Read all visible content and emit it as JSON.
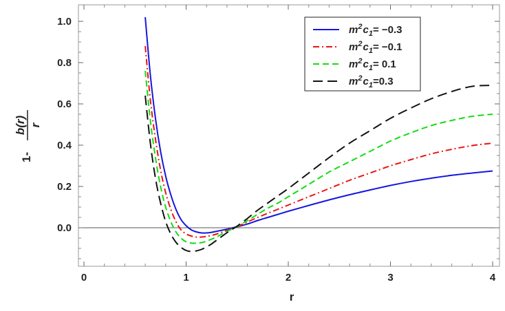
{
  "chart_data": {
    "type": "line",
    "xlabel": "r",
    "ylabel": "1 - b(r)/r",
    "ylabel_parts": {
      "lead": "1-",
      "numerator": "b(r)",
      "denominator": "r"
    },
    "xlim": [
      0,
      4
    ],
    "ylim": [
      -0.15,
      1.0
    ],
    "x_ticks": [
      "0",
      "1",
      "2",
      "3",
      "4"
    ],
    "y_ticks": [
      "0.0",
      "0.2",
      "0.4",
      "0.6",
      "0.8",
      "1.0"
    ],
    "grid": false,
    "legend_position": "top-right",
    "series": [
      {
        "name": "m2c1= -0.3",
        "legend": {
          "m": "m",
          "sup": "2",
          "c": "c",
          "sub": "1",
          "rest": "= −0.3"
        },
        "color": "#1515e0",
        "dash": "solid",
        "x": [
          0.6,
          0.65,
          0.7,
          0.75,
          0.8,
          0.85,
          0.9,
          0.95,
          1.0,
          1.05,
          1.1,
          1.15,
          1.2,
          1.25,
          1.3,
          1.35,
          1.4,
          1.45,
          1.5,
          1.6,
          1.7,
          1.8,
          1.9,
          2.0,
          2.2,
          2.4,
          2.6,
          2.8,
          3.0,
          3.2,
          3.4,
          3.6,
          3.8,
          4.0
        ],
        "y": [
          1.02,
          0.74,
          0.53,
          0.37,
          0.25,
          0.16,
          0.09,
          0.04,
          0.01,
          -0.01,
          -0.02,
          -0.025,
          -0.025,
          -0.022,
          -0.017,
          -0.012,
          -0.007,
          -0.001,
          0.005,
          0.018,
          0.035,
          0.05,
          0.065,
          0.08,
          0.108,
          0.135,
          0.16,
          0.183,
          0.205,
          0.224,
          0.24,
          0.254,
          0.265,
          0.275
        ]
      },
      {
        "name": "m2c1= -0.1",
        "legend": {
          "m": "m",
          "sup": "2",
          "c": "c",
          "sub": "1",
          "rest": "= −0.1"
        },
        "color": "#ee1111",
        "dash": "9,4,2,4",
        "x": [
          0.6,
          0.65,
          0.7,
          0.75,
          0.8,
          0.85,
          0.9,
          0.95,
          1.0,
          1.05,
          1.1,
          1.15,
          1.2,
          1.25,
          1.3,
          1.35,
          1.4,
          1.45,
          1.5,
          1.6,
          1.7,
          1.8,
          1.9,
          2.0,
          2.2,
          2.4,
          2.6,
          2.8,
          3.0,
          3.2,
          3.4,
          3.6,
          3.8,
          4.0
        ],
        "y": [
          0.88,
          0.62,
          0.43,
          0.28,
          0.17,
          0.09,
          0.03,
          -0.01,
          -0.03,
          -0.04,
          -0.045,
          -0.045,
          -0.042,
          -0.037,
          -0.03,
          -0.022,
          -0.013,
          -0.004,
          0.005,
          0.028,
          0.05,
          0.07,
          0.09,
          0.11,
          0.15,
          0.19,
          0.23,
          0.265,
          0.3,
          0.33,
          0.358,
          0.38,
          0.398,
          0.41
        ]
      },
      {
        "name": "m2c1= 0.1",
        "legend": {
          "m": "m",
          "sup": "2",
          "c": "c",
          "sub": "1",
          "rest": "= 0.1"
        },
        "color": "#11dd11",
        "dash": "9,5",
        "x": [
          0.6,
          0.65,
          0.7,
          0.75,
          0.8,
          0.85,
          0.9,
          0.95,
          1.0,
          1.05,
          1.1,
          1.15,
          1.2,
          1.25,
          1.3,
          1.35,
          1.4,
          1.45,
          1.5,
          1.6,
          1.7,
          1.8,
          1.9,
          2.0,
          2.2,
          2.4,
          2.6,
          2.8,
          3.0,
          3.2,
          3.4,
          3.6,
          3.8,
          4.0
        ],
        "y": [
          0.76,
          0.52,
          0.34,
          0.2,
          0.1,
          0.03,
          -0.02,
          -0.05,
          -0.068,
          -0.074,
          -0.075,
          -0.072,
          -0.065,
          -0.055,
          -0.044,
          -0.031,
          -0.018,
          -0.006,
          0.006,
          0.035,
          0.065,
          0.095,
          0.12,
          0.15,
          0.21,
          0.27,
          0.32,
          0.37,
          0.42,
          0.46,
          0.495,
          0.52,
          0.54,
          0.55
        ]
      },
      {
        "name": "m2c1=0.3",
        "legend": {
          "m": "m",
          "sup": "2",
          "c": "c",
          "sub": "1",
          "rest": "=0.3"
        },
        "color": "#111111",
        "dash": "14,7",
        "x": [
          0.6,
          0.65,
          0.7,
          0.75,
          0.8,
          0.85,
          0.9,
          0.95,
          1.0,
          1.05,
          1.1,
          1.15,
          1.2,
          1.25,
          1.3,
          1.35,
          1.4,
          1.45,
          1.5,
          1.6,
          1.7,
          1.8,
          1.9,
          2.0,
          2.2,
          2.4,
          2.6,
          2.8,
          3.0,
          3.2,
          3.4,
          3.6,
          3.8,
          4.0
        ],
        "y": [
          0.64,
          0.41,
          0.24,
          0.12,
          0.03,
          -0.03,
          -0.07,
          -0.095,
          -0.11,
          -0.115,
          -0.112,
          -0.105,
          -0.093,
          -0.078,
          -0.06,
          -0.042,
          -0.024,
          -0.008,
          0.008,
          0.045,
          0.085,
          0.12,
          0.155,
          0.19,
          0.265,
          0.34,
          0.41,
          0.47,
          0.53,
          0.58,
          0.625,
          0.66,
          0.685,
          0.69
        ]
      }
    ]
  }
}
